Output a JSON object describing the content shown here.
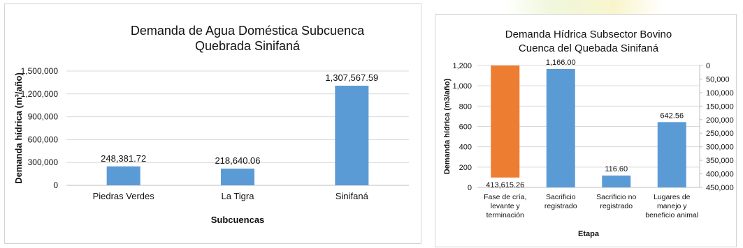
{
  "chart_data": [
    {
      "type": "bar",
      "title_line1": "Demanda de Agua Doméstica Subcuenca",
      "title_line2": "Quebrada Sinifaná",
      "xlabel": "Subcuencas",
      "ylabel": "Demanda hídrica (m³/año)",
      "ylim": [
        0,
        1500000
      ],
      "yticks": [
        0,
        300000,
        600000,
        900000,
        1200000,
        1500000
      ],
      "ytick_labels": [
        "0",
        "300,000",
        "600,000",
        "900,000",
        "1,200,000",
        "1,500,000"
      ],
      "categories": [
        "Piedras Verdes",
        "La Tigra",
        "Sinifaná"
      ],
      "values": [
        248381.72,
        218640.06,
        1307567.59
      ],
      "value_labels": [
        "248,381.72",
        "218,640.06",
        "1,307,567.59"
      ],
      "grid": true,
      "color": "#5b9bd5"
    },
    {
      "type": "bar",
      "title_line1": "Demanda Hídrica Subsector Bovino",
      "title_line2": "Cuenca del Quebada Sinifaná",
      "xlabel": "Etapa",
      "ylabel": "Demanda hídrica (m3/año)",
      "ylim": [
        0,
        1200
      ],
      "yticks": [
        0,
        200,
        400,
        600,
        800,
        1000,
        1200
      ],
      "ytick_labels": [
        "0",
        "200",
        "400",
        "600",
        "800",
        "1,000",
        "1,200"
      ],
      "y2lim": [
        0,
        450000
      ],
      "y2_reversed": true,
      "y2ticks": [
        0,
        50000,
        100000,
        150000,
        200000,
        250000,
        300000,
        350000,
        400000,
        450000
      ],
      "y2tick_labels": [
        "0",
        "50,000",
        "100,000",
        "150,000",
        "200,000",
        "250,000",
        "300,000",
        "350,000",
        "400,000",
        "450,000"
      ],
      "categories": [
        [
          "Fase de cría,",
          "levante y",
          "terminación"
        ],
        [
          "Sacrificio",
          "registrado"
        ],
        [
          "Sacrificio no",
          "registrado"
        ],
        [
          "Lugares de",
          "manejo y",
          "beneficio animal"
        ]
      ],
      "values": [
        413615.26,
        1166.0,
        116.6,
        642.56
      ],
      "value_labels": [
        "413,615.26",
        "1,166.00",
        "116.60",
        "642.56"
      ],
      "axis": [
        "secondary",
        "primary",
        "primary",
        "primary"
      ],
      "colors": [
        "#ed7d31",
        "#5b9bd5",
        "#5b9bd5",
        "#5b9bd5"
      ],
      "grid": true
    }
  ]
}
